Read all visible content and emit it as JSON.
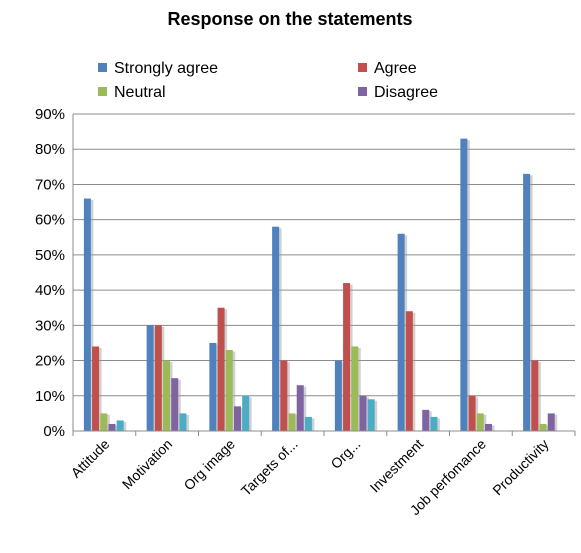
{
  "chart_data": {
    "type": "bar",
    "title": "Response on the statements",
    "categories": [
      "Attitude",
      "Motivation",
      "Org image",
      "Targets of...",
      "Org...",
      "Investment",
      "Job perfomance",
      "Productivity"
    ],
    "series": [
      {
        "name": "Strongly agree",
        "color": "#4F81BD",
        "values": [
          66,
          30,
          25,
          58,
          20,
          56,
          83,
          73
        ]
      },
      {
        "name": "Agree",
        "color": "#C0504D",
        "values": [
          24,
          30,
          35,
          20,
          42,
          34,
          10,
          20
        ]
      },
      {
        "name": "Neutral",
        "color": "#9BBB59",
        "values": [
          5,
          20,
          23,
          5,
          24,
          0,
          5,
          2
        ]
      },
      {
        "name": "Disagree",
        "color": "#8064A2",
        "values": [
          2,
          15,
          7,
          13,
          10,
          6,
          2,
          5
        ]
      },
      {
        "name": "",
        "color": "#4BACC6",
        "values": [
          3,
          5,
          10,
          4,
          9,
          4,
          0,
          0
        ]
      }
    ],
    "y_ticks": [
      "0%",
      "10%",
      "20%",
      "30%",
      "40%",
      "50%",
      "60%",
      "70%",
      "80%",
      "90%"
    ],
    "ylim": [
      0,
      90
    ],
    "grid": true,
    "legend_position": "top"
  }
}
